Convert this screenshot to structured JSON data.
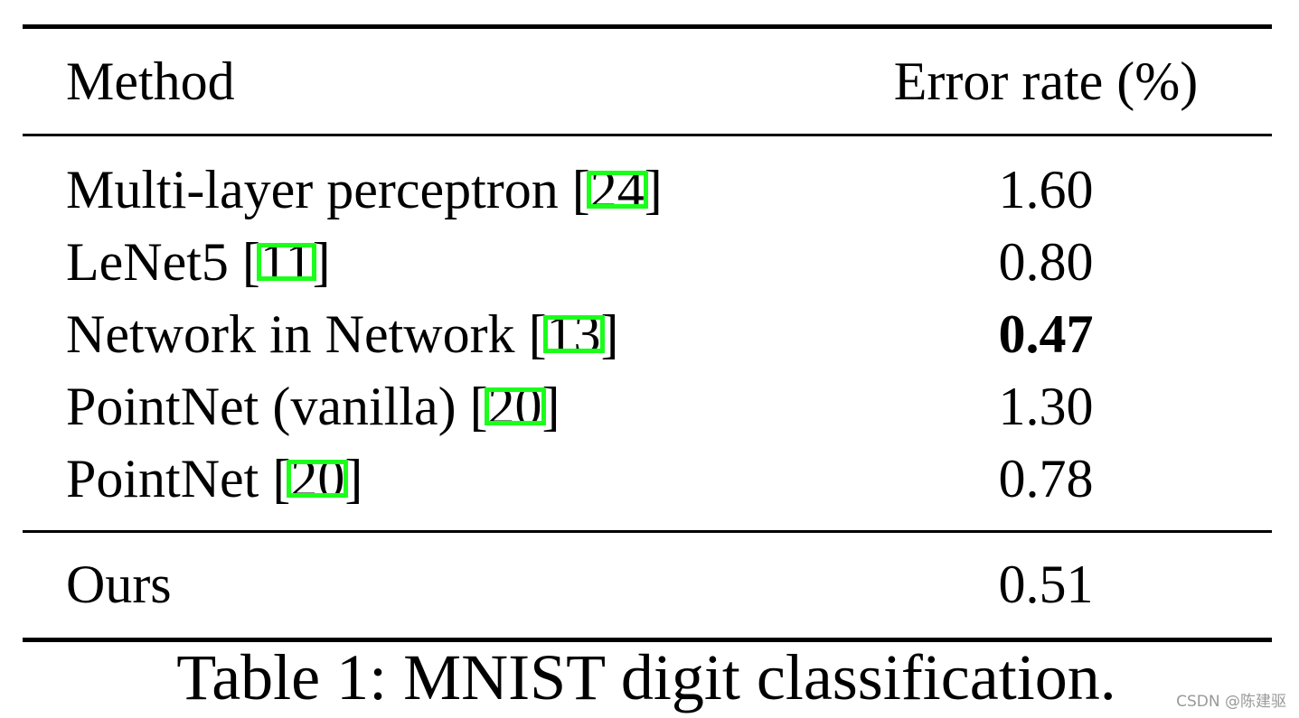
{
  "header": {
    "method": "Method",
    "error": "Error rate (%)"
  },
  "rows": [
    {
      "method": "Multi-layer perceptron",
      "cite": "[24]",
      "error": "1.60"
    },
    {
      "method": "LeNet5",
      "cite": "[11]",
      "error": "0.80"
    },
    {
      "method": "Network in Network",
      "cite": "[13]",
      "error": "0.47"
    },
    {
      "method": "PointNet (vanilla)",
      "cite": "[20]",
      "error": "1.30"
    },
    {
      "method": "PointNet",
      "cite": "[20]",
      "error": "0.78"
    }
  ],
  "ours": {
    "method": "Ours",
    "error": "0.51"
  },
  "caption": "Table 1: MNIST digit classification.",
  "watermark": "CSDN @陈建驱"
}
